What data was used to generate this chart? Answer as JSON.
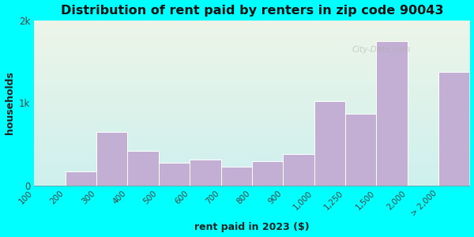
{
  "title": "Distribution of rent paid by renters in zip code 90043",
  "xlabel": "rent paid in 2023 ($)",
  "ylabel": "households",
  "categories": [
    "100",
    "200",
    "300",
    "400",
    "500",
    "600",
    "700",
    "800",
    "900",
    "1,000",
    "1,250",
    "1,500",
    "2,000",
    "> 2,000"
  ],
  "values": [
    0,
    170,
    650,
    420,
    270,
    310,
    230,
    290,
    380,
    1020,
    870,
    1750,
    0,
    1380
  ],
  "bar_color": "#c4afd4",
  "bar_edge_color": "#ffffff",
  "background_outer": "#00ffff",
  "plot_bg_top_color": "#edf5e8",
  "plot_bg_bottom_color": "#cef0ee",
  "title_fontsize": 11.5,
  "axis_label_fontsize": 9,
  "tick_fontsize": 7.5,
  "ylim": [
    0,
    2000
  ],
  "yticks": [
    0,
    1000,
    2000
  ],
  "ytick_labels": [
    "0",
    "1k",
    "2k"
  ],
  "watermark_text": "City-Data.com"
}
